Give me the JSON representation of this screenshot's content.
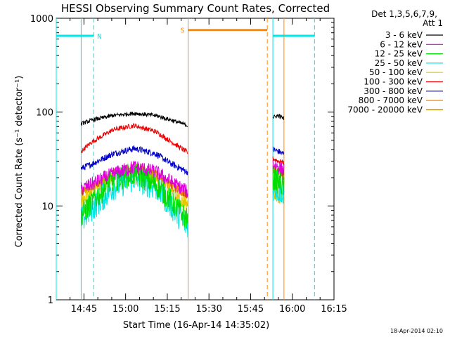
{
  "chart_data": {
    "type": "line",
    "title": "HESSI Observing Summary Count Rates, Corrected",
    "xlabel": "Start Time (16-Apr-14 14:35:02)",
    "ylabel": "Corrected Count Rate (s⁻¹ detector⁻¹)",
    "x_unit": "time",
    "xlim": [
      "14:35:02",
      "16:15:00"
    ],
    "ylim": [
      1,
      1000
    ],
    "yscale": "log",
    "x_ticks": [
      "14:45",
      "15:00",
      "15:15",
      "15:30",
      "15:45",
      "16:00",
      "16:15"
    ],
    "y_ticks": [
      {
        "value": 1,
        "label": "1"
      },
      {
        "value": 10,
        "label": "10"
      },
      {
        "value": 100,
        "label": "100"
      },
      {
        "value": 1000,
        "label": "1000"
      }
    ],
    "legend": {
      "header": [
        "Det 1,3,5,6,7,9,",
        "Att 1"
      ],
      "placement": "right"
    },
    "segments": [
      {
        "start": "14:44:00",
        "end": "15:22:20"
      },
      {
        "start": "15:53:00",
        "end": "15:57:00"
      }
    ],
    "series": [
      {
        "name": "3 - 6 keV",
        "color": "#000000",
        "seg1": [
          [
            0,
            75
          ],
          [
            0.1,
            82
          ],
          [
            0.3,
            92
          ],
          [
            0.5,
            97
          ],
          [
            0.7,
            92
          ],
          [
            0.85,
            82
          ],
          [
            1,
            72
          ]
        ],
        "seg2": [
          [
            0,
            88
          ],
          [
            0.5,
            92
          ],
          [
            1,
            85
          ]
        ]
      },
      {
        "name": "6 - 12 keV",
        "color": "#dd00dd",
        "seg1": [
          [
            0,
            15
          ],
          [
            0.1,
            17
          ],
          [
            0.3,
            22
          ],
          [
            0.5,
            26
          ],
          [
            0.7,
            23
          ],
          [
            0.85,
            18
          ],
          [
            1,
            14
          ]
        ],
        "seg2": [
          [
            0,
            28
          ],
          [
            0.5,
            26
          ],
          [
            1,
            24
          ]
        ]
      },
      {
        "name": "12 - 25 keV",
        "color": "#00dd00",
        "seg1": [
          [
            0,
            8
          ],
          [
            0.1,
            11
          ],
          [
            0.3,
            19
          ],
          [
            0.5,
            22
          ],
          [
            0.7,
            17
          ],
          [
            0.85,
            11
          ],
          [
            1,
            7
          ]
        ],
        "seg2": [
          [
            0,
            20
          ],
          [
            0.5,
            18
          ],
          [
            1,
            16
          ]
        ]
      },
      {
        "name": "25 - 50 keV",
        "color": "#00e5e5",
        "seg1": [
          [
            0,
            7
          ],
          [
            0.1,
            9.5
          ],
          [
            0.3,
            16
          ],
          [
            0.5,
            20
          ],
          [
            0.7,
            16
          ],
          [
            0.85,
            10
          ],
          [
            1,
            6
          ]
        ],
        "seg2": [
          [
            0,
            16
          ],
          [
            0.5,
            15
          ],
          [
            1,
            14
          ]
        ]
      },
      {
        "name": "50 - 100 keV",
        "color": "#e5c800",
        "seg1": [
          [
            0,
            11
          ],
          [
            0.1,
            14
          ],
          [
            0.3,
            20
          ],
          [
            0.5,
            24
          ],
          [
            0.7,
            20
          ],
          [
            0.85,
            14
          ],
          [
            1,
            10
          ]
        ],
        "seg2": [
          [
            0,
            15
          ],
          [
            0.5,
            13
          ],
          [
            1,
            12
          ]
        ]
      },
      {
        "name": "100 - 300 keV",
        "color": "#ee0000",
        "seg1": [
          [
            0,
            38
          ],
          [
            0.1,
            48
          ],
          [
            0.3,
            65
          ],
          [
            0.5,
            72
          ],
          [
            0.7,
            62
          ],
          [
            0.85,
            48
          ],
          [
            1,
            37
          ]
        ],
        "seg2": [
          [
            0,
            32
          ],
          [
            0.5,
            30
          ],
          [
            1,
            29
          ]
        ]
      },
      {
        "name": "300 - 800 keV",
        "color": "#0000cc",
        "seg1": [
          [
            0,
            25
          ],
          [
            0.1,
            28
          ],
          [
            0.3,
            36
          ],
          [
            0.5,
            41
          ],
          [
            0.7,
            36
          ],
          [
            0.85,
            28
          ],
          [
            1,
            23
          ]
        ],
        "seg2": [
          [
            0,
            40
          ],
          [
            0.5,
            38
          ],
          [
            1,
            36
          ]
        ]
      },
      {
        "name": "800 - 7000 keV",
        "color": "#ff8800",
        "seg1": [
          [
            0,
            14
          ],
          [
            0.1,
            16
          ],
          [
            0.3,
            22
          ],
          [
            0.5,
            26
          ],
          [
            0.7,
            22
          ],
          [
            0.85,
            16
          ],
          [
            1,
            13
          ]
        ],
        "seg2": [
          [
            0,
            25
          ],
          [
            0.5,
            23
          ],
          [
            1,
            22
          ]
        ]
      },
      {
        "name": "7000 - 20000 keV",
        "color": "#aa7700",
        "seg1": [
          [
            0,
            14
          ],
          [
            0.1,
            16
          ],
          [
            0.3,
            21
          ],
          [
            0.5,
            25
          ],
          [
            0.7,
            21
          ],
          [
            0.85,
            16
          ],
          [
            1,
            13
          ]
        ],
        "seg2": [
          [
            0,
            24
          ],
          [
            0.5,
            22
          ],
          [
            1,
            21
          ]
        ]
      }
    ],
    "annotations": [
      {
        "label": "N",
        "type": "night",
        "color": "#00e5e5",
        "start": "14:35:02",
        "end": "14:48:30",
        "level": 650,
        "markers": [
          {
            "time": "14:35:02",
            "style": "solid"
          },
          {
            "time": "14:48:30",
            "style": "dashed"
          }
        ]
      },
      {
        "label": "S",
        "type": "saa",
        "color": "#ff8800",
        "start": "15:22:30",
        "end": "15:51:00",
        "level": 750,
        "markers": [
          {
            "time": "15:22:30",
            "style": "solid"
          },
          {
            "time": "15:51:00",
            "style": "dashed"
          }
        ]
      },
      {
        "label": "",
        "type": "night",
        "color": "#00e5e5",
        "start": "15:53:00",
        "end": "16:08:00",
        "level": 650,
        "markers": [
          {
            "time": "15:53:00",
            "style": "solid"
          },
          {
            "time": "16:08:00",
            "style": "dashed"
          }
        ]
      }
    ],
    "extra_markers": [
      {
        "time": "14:44:00",
        "color": "#00e5e5",
        "style": "solid"
      },
      {
        "time": "15:57:00",
        "color": "#ff8800",
        "style": "solid"
      }
    ],
    "grid": false
  },
  "footer": {
    "timestamp": "18-Apr-2014 02:10"
  }
}
